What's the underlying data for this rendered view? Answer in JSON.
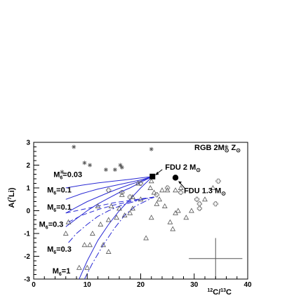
{
  "chart_data": {
    "type": "scatter",
    "title": "",
    "xlabel": "12C/13C",
    "xlabel_parts": {
      "pre_sup": "12",
      "mid": "C/",
      "mid_sup": "13",
      "post": "C"
    },
    "ylabel": "A(7Li)",
    "ylabel_parts": {
      "pre": "A(",
      "sup": "7",
      "post": "Li)"
    },
    "xlim": [
      0,
      40
    ],
    "ylim": [
      -3,
      3
    ],
    "xticks": [
      "0",
      "10",
      "20",
      "30",
      "40"
    ],
    "yticks": [
      "-3",
      "-2",
      "-1",
      "0",
      "1",
      "2",
      "3"
    ],
    "legend_label": {
      "text": "RGB 2M",
      "sub1": "⊙",
      "mid": " Z",
      "sub2": "⊙"
    },
    "points_asterisk": [
      [
        7.5,
        2.8
      ],
      [
        9.5,
        2.1
      ],
      [
        10.5,
        2.0
      ],
      [
        13.5,
        1.8
      ],
      [
        15.2,
        1.8
      ],
      [
        16.2,
        2.0
      ],
      [
        16.5,
        1.9
      ],
      [
        22.0,
        2.7
      ],
      [
        5.3,
        1.7
      ],
      [
        36.0,
        2.8
      ]
    ],
    "points_triangle": [
      [
        19.5,
        1.2
      ],
      [
        21.8,
        1.0
      ],
      [
        22.0,
        1.3
      ],
      [
        22.5,
        0.8
      ],
      [
        24.0,
        0.9
      ],
      [
        25.0,
        0.9
      ],
      [
        26.5,
        0.9
      ],
      [
        27.5,
        1.0
      ],
      [
        23.0,
        0.3
      ],
      [
        24.5,
        0.2
      ],
      [
        25.5,
        -0.5
      ],
      [
        26.5,
        -0.1
      ],
      [
        27.0,
        0.0
      ],
      [
        28.5,
        -0.3
      ],
      [
        29.5,
        0.0
      ],
      [
        32.0,
        0.5
      ],
      [
        33.5,
        1.0
      ],
      [
        20.0,
        0.5
      ],
      [
        18.5,
        0.1
      ],
      [
        18.0,
        -0.1
      ],
      [
        17.0,
        -0.2
      ],
      [
        15.5,
        -0.3
      ],
      [
        14.0,
        -0.4
      ],
      [
        12.5,
        -0.6
      ],
      [
        12.0,
        0.2
      ],
      [
        14.5,
        0.2
      ],
      [
        16.0,
        0.1
      ],
      [
        11.0,
        -1.0
      ],
      [
        10.5,
        -1.5
      ],
      [
        9.5,
        -1.5
      ],
      [
        13.0,
        -1.5
      ],
      [
        14.0,
        -1.8
      ],
      [
        10.0,
        -2.5
      ],
      [
        8.5,
        -2.5
      ],
      [
        6.0,
        -1.0
      ],
      [
        6.5,
        -0.5
      ],
      [
        18.5,
        0.6
      ],
      [
        16.5,
        0.7
      ],
      [
        22.0,
        -0.3
      ],
      [
        21.0,
        -1.2
      ],
      [
        23.5,
        0.5
      ],
      [
        26.0,
        -0.8
      ]
    ],
    "points_cross": [
      [
        20.0,
        1.2
      ],
      [
        23.0,
        0.7
      ],
      [
        25.0,
        1.0
      ],
      [
        27.5,
        0.8
      ],
      [
        30.5,
        0.5
      ],
      [
        31.0,
        0.1
      ],
      [
        31.0,
        0.3
      ],
      [
        34.0,
        0.3
      ],
      [
        34.5,
        1.3
      ],
      [
        16.5,
        0.8
      ],
      [
        18.0,
        0.6
      ],
      [
        14.0,
        0.9
      ]
    ],
    "highlight_points": [
      {
        "label": "FDU 2 M",
        "sym": "⊙",
        "x": 22.2,
        "y": 1.5,
        "marker": "square"
      },
      {
        "label": "FDU 1.3 M",
        "sym": "⊙",
        "x": 26.5,
        "y": 1.45,
        "marker": "circle"
      }
    ],
    "series": [
      {
        "name": "M6=0.03",
        "label_sub": "6",
        "label_pre": "M",
        "label_post": "=0.03",
        "style": "solid",
        "x": [
          6.0,
          9.0,
          12.0,
          15.0,
          18.0,
          20.0,
          22.2
        ],
        "y": [
          1.0,
          1.12,
          1.22,
          1.3,
          1.38,
          1.44,
          1.5
        ]
      },
      {
        "name": "M6=0.1",
        "label_sub": "6",
        "label_pre": "M",
        "label_post": "=0.1",
        "style": "solid",
        "x": [
          6.0,
          9.0,
          12.0,
          15.0,
          18.0,
          20.0,
          22.2
        ],
        "y": [
          0.5,
          0.75,
          0.95,
          1.1,
          1.25,
          1.35,
          1.5
        ]
      },
      {
        "name": "M6=0.1",
        "label_sub": "6",
        "label_pre": "M",
        "label_post": "=0.1",
        "style": "solid",
        "x": [
          6.0,
          8.0,
          10.0,
          12.0,
          14.0,
          16.0,
          18.0,
          20.0,
          22.2
        ],
        "y": [
          -0.1,
          0.15,
          0.4,
          0.6,
          0.8,
          0.98,
          1.15,
          1.3,
          1.5
        ]
      },
      {
        "name": "M6=0.3",
        "label_sub": "6",
        "label_pre": "M",
        "label_post": "=0.3",
        "style": "solid",
        "x": [
          6.0,
          8.0,
          10.0,
          12.0,
          14.0,
          16.0,
          18.0,
          20.0,
          22.2
        ],
        "y": [
          -0.7,
          -0.35,
          0.0,
          0.3,
          0.55,
          0.8,
          1.0,
          1.25,
          1.5
        ]
      },
      {
        "name": "dash-upper",
        "style": "dashed",
        "x": [
          6.0,
          9.0,
          12.0,
          15.0,
          18.0,
          20.0,
          22.5
        ],
        "y": [
          -0.1,
          0.05,
          0.2,
          0.35,
          0.45,
          0.52,
          0.6
        ]
      },
      {
        "name": "dash-mid",
        "style": "dashed",
        "x": [
          6.5,
          9.0,
          12.0,
          15.0,
          18.0,
          20.0,
          22.5
        ],
        "y": [
          -0.5,
          -0.2,
          0.05,
          0.25,
          0.4,
          0.5,
          0.58
        ]
      },
      {
        "name": "M6=0.3",
        "label_sub": "6",
        "label_pre": "M",
        "label_post": "=0.3",
        "style": "dashdot",
        "x": [
          6.5,
          8.0,
          10.0,
          12.0,
          14.0,
          16.0,
          18.0,
          20.0,
          22.5
        ],
        "y": [
          -1.4,
          -1.0,
          -0.6,
          -0.25,
          0.0,
          0.2,
          0.35,
          0.48,
          0.6
        ]
      },
      {
        "name": "M6=1",
        "label_sub": "6",
        "label_pre": "M",
        "label_post": "=1",
        "style": "solid",
        "x": [
          8.5,
          10.0,
          12.0,
          14.0,
          16.0,
          18.0,
          20.0,
          22.2
        ],
        "y": [
          -3.0,
          -2.2,
          -1.3,
          -0.6,
          0.0,
          0.5,
          1.0,
          1.5
        ]
      },
      {
        "name": "M6=1-dashed",
        "style": "dashdot",
        "x": [
          9.5,
          11.0,
          13.0,
          15.0,
          17.0,
          19.0,
          22.5
        ],
        "y": [
          -3.0,
          -2.3,
          -1.5,
          -0.8,
          -0.2,
          0.2,
          0.6
        ]
      }
    ],
    "series_labels": [
      {
        "pre": "M",
        "sub": "6",
        "post": "=0.03",
        "x": 3.7,
        "y": 1.48
      },
      {
        "pre": "M",
        "sub": "6",
        "post": "=0.1",
        "x": 2.5,
        "y": 0.8
      },
      {
        "pre": "M",
        "sub": "6",
        "post": "=0.1",
        "x": 2.5,
        "y": 0.05
      },
      {
        "pre": "M",
        "sub": "6",
        "post": "=0.3",
        "x": 1.0,
        "y": -0.7
      },
      {
        "pre": "M",
        "sub": "6",
        "post": "=0.3",
        "x": 2.5,
        "y": -1.8
      },
      {
        "pre": "M",
        "sub": "6",
        "post": "=1",
        "x": 3.5,
        "y": -2.75
      }
    ],
    "error_bar": {
      "x": 34.0,
      "y": -2.1,
      "xerr": 5.0,
      "yerr": 0.9
    },
    "grid": false
  }
}
